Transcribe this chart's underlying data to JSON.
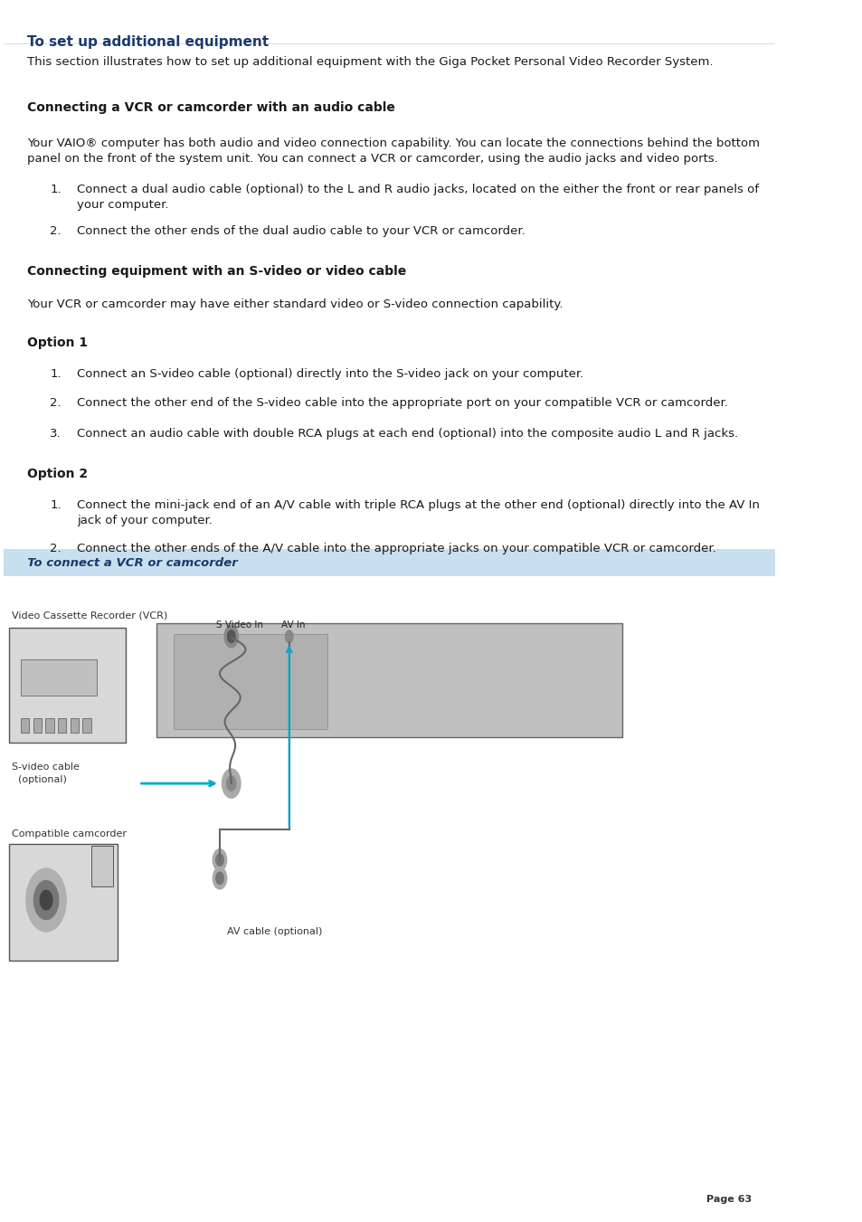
{
  "title": "To set up additional equipment",
  "title_color": "#1a3a6b",
  "body_color": "#1a1a1a",
  "bg_color": "#ffffff",
  "page_number": "Page 63",
  "banner": {
    "text": "  To connect a VCR or camcorder",
    "bg_color": "#c8dff0",
    "text_color": "#1a3a6b"
  }
}
